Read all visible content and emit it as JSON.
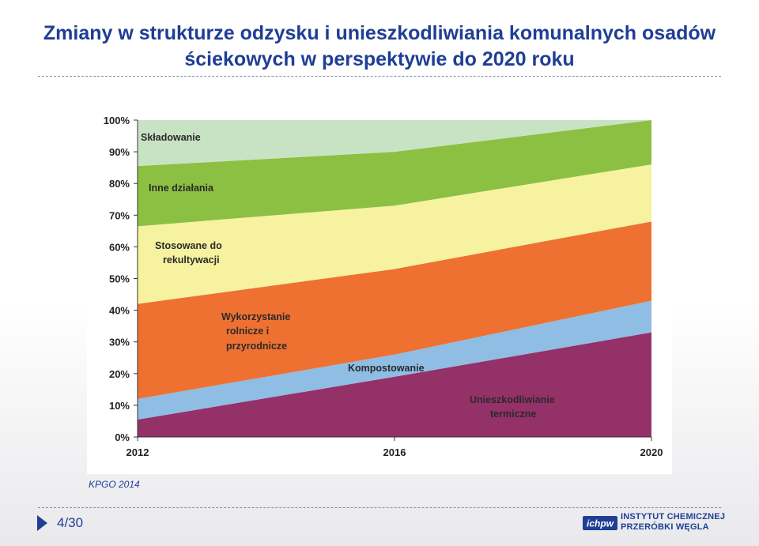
{
  "slide": {
    "title_line1": "Zmiany w strukturze odzysku i unieszkodliwiania komunalnych osadów",
    "title_line2": "ściekowych w perspektywie do 2020 roku",
    "source": "KPGO 2014",
    "page_number": "4/30",
    "logo_text_line1": "INSTYTUT CHEMICZNEJ",
    "logo_text_line2": "PRZERÓBKI WĘGLA",
    "logo_mark": "ichpw",
    "colors": {
      "title": "#1f3e95",
      "accent": "#1f3e95"
    }
  },
  "chart_data": {
    "type": "area",
    "stacked": true,
    "x": [
      2012,
      2016,
      2020
    ],
    "ylim": [
      0,
      100
    ],
    "yticks": [
      "0%",
      "10%",
      "20%",
      "30%",
      "40%",
      "50%",
      "60%",
      "70%",
      "80%",
      "90%",
      "100%"
    ],
    "xticks": [
      "2012",
      "2016",
      "2020"
    ],
    "series": [
      {
        "name": "Unieszkodliwianie termiczne",
        "values": [
          5.5,
          19,
          33
        ],
        "color": "#943168"
      },
      {
        "name": "Kompostowanie",
        "values": [
          6.5,
          7,
          10
        ],
        "color": "#8fbde4"
      },
      {
        "name": "Wykorzystanie rolnicze i przyrodnicze",
        "values": [
          30,
          27,
          25
        ],
        "color": "#ee7132"
      },
      {
        "name": "Stosowane do rekultywacji",
        "values": [
          24.5,
          20,
          18
        ],
        "color": "#f6f29f"
      },
      {
        "name": "Inne działania",
        "values": [
          19,
          17,
          14
        ],
        "color": "#8cc043"
      },
      {
        "name": "Składowanie",
        "values": [
          14.5,
          10,
          0
        ],
        "color": "#c8e3c3"
      }
    ],
    "labels": [
      {
        "text": "Składowanie",
        "series": 5
      },
      {
        "text": "Inne działania",
        "series": 4
      },
      {
        "text": "Stosowane do",
        "series": 3
      },
      {
        "text": "rekultywacji",
        "series": 3
      },
      {
        "text": "Wykorzystanie",
        "series": 2
      },
      {
        "text": "rolnicze i",
        "series": 2
      },
      {
        "text": "przyrodnicze",
        "series": 2
      },
      {
        "text": "Kompostowanie",
        "series": 1
      },
      {
        "text": "Unieszkodliwianie",
        "series": 0
      },
      {
        "text": "termiczne",
        "series": 0
      }
    ]
  }
}
